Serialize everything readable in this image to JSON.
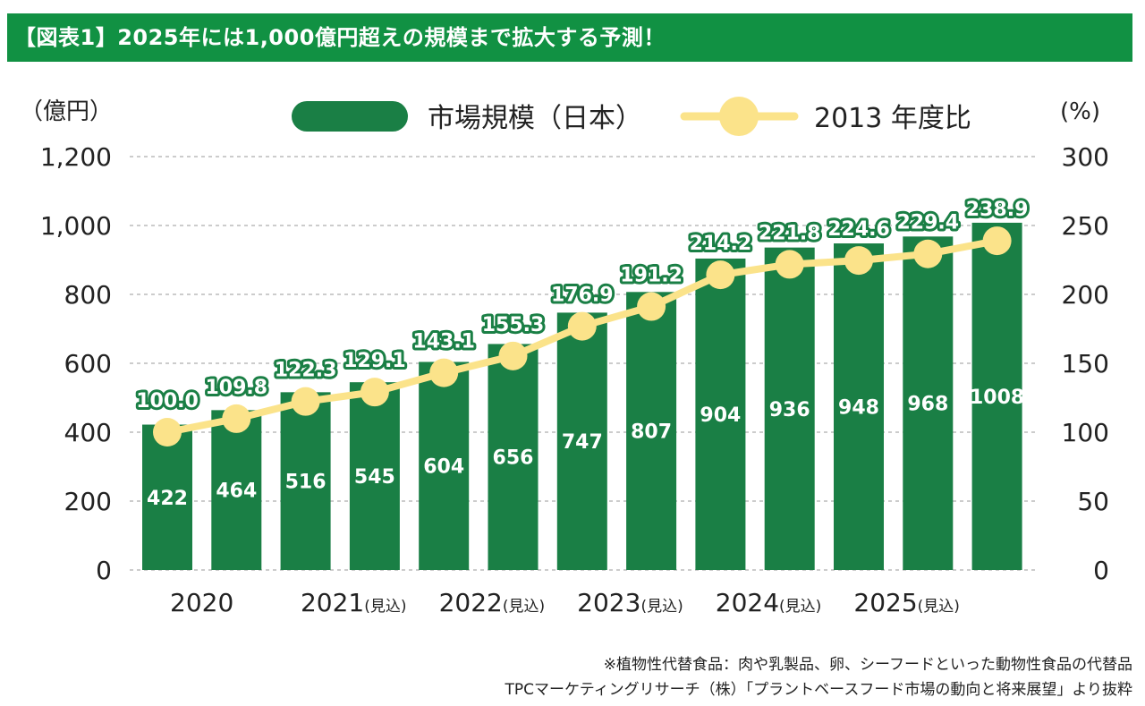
{
  "title": "【図表1】2025年には1,000億円超えの規模まで拡大する予測！",
  "chart_data": {
    "type": "bar+line",
    "left_axis": {
      "label": "（億円）",
      "range": [
        0,
        1200
      ],
      "ticks": [
        "0",
        "200",
        "400",
        "600",
        "800",
        "1,000",
        "1,200"
      ],
      "tick_values": [
        0,
        200,
        400,
        600,
        800,
        1000,
        1200
      ]
    },
    "right_axis": {
      "label": "(%)",
      "range": [
        0,
        300
      ],
      "ticks": [
        "0",
        "50",
        "100",
        "150",
        "200",
        "250",
        "300"
      ],
      "tick_values": [
        0,
        50,
        100,
        150,
        200,
        250,
        300
      ]
    },
    "x_tick_labels": [
      {
        "year": "2020",
        "suffix": ""
      },
      {
        "year": "2021",
        "suffix": "(見込)"
      },
      {
        "year": "2022",
        "suffix": "(見込)"
      },
      {
        "year": "2023",
        "suffix": "(見込)"
      },
      {
        "year": "2024",
        "suffix": "(見込)"
      },
      {
        "year": "2025",
        "suffix": "(見込)"
      }
    ],
    "grid": "horizontal dashed",
    "legend_position": "top",
    "series": [
      {
        "name": "市場規模（日本）",
        "type": "bar",
        "axis": "left",
        "color": "#1a7f45",
        "values": [
          422,
          464,
          516,
          545,
          604,
          656,
          747,
          807,
          904,
          936,
          948,
          968,
          1008
        ]
      },
      {
        "name": "2013 年度比",
        "type": "line",
        "axis": "right",
        "color": "#fbe38a",
        "values": [
          100.0,
          109.8,
          122.3,
          129.1,
          143.1,
          155.3,
          176.9,
          191.2,
          214.2,
          221.8,
          224.6,
          229.4,
          238.9
        ]
      }
    ]
  },
  "notes": [
    "※植物性代替食品：肉や乳製品、卵、シーフードといった動物性食品の代替品",
    "TPCマーケティングリサーチ（株）「プラントベースフード市場の動向と将来展望」より抜粋"
  ]
}
